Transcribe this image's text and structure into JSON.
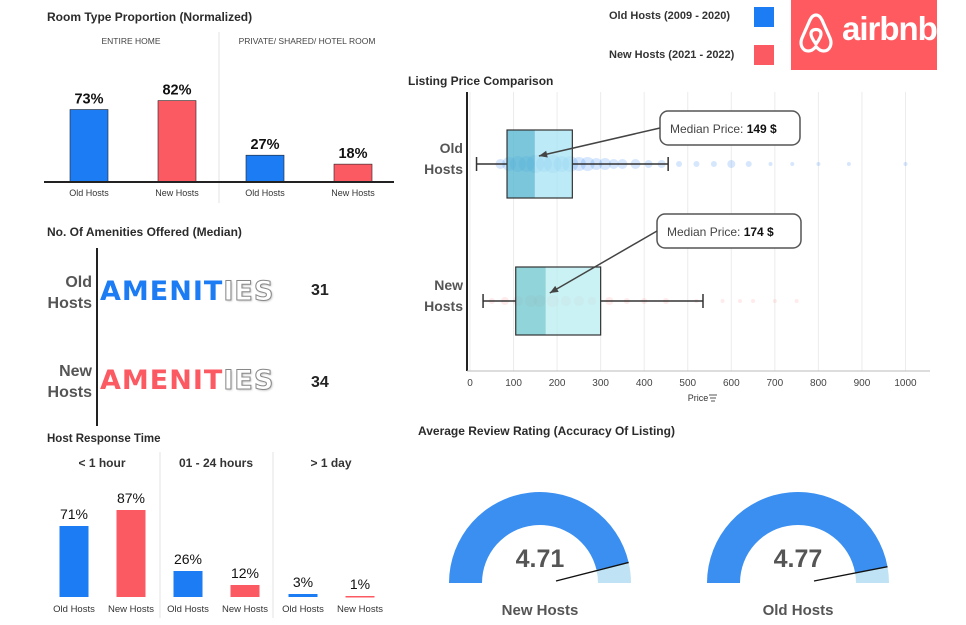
{
  "colors": {
    "old": "#1c7cf4",
    "new": "#fc5a63",
    "old_light": "#a6e3f3",
    "old_box_dark": "#4fb3cf",
    "new_light": "#b8ecef",
    "new_box_dark": "#6cc6cc",
    "gauge_old": "#3a8ff0",
    "gauge_light": "#bfe3f5",
    "axis": "#222222",
    "grid": "#ececec"
  },
  "legend": {
    "items": [
      {
        "label": "Old Hosts (2009 - 2020)",
        "color": "#1c7cf4"
      },
      {
        "label": "New Hosts (2021 - 2022)",
        "color": "#fc5a63"
      }
    ]
  },
  "logo": {
    "text": "airbnb",
    "icon": "airbnb-belo-icon"
  },
  "room_type": {
    "title": "Room Type Proportion (Normalized)",
    "chart_data": {
      "type": "bar",
      "groups": [
        "ENTIRE HOME",
        "PRIVATE/ SHARED/ HOTEL ROOM"
      ],
      "categories": [
        "Old Hosts",
        "New Hosts"
      ],
      "series": [
        {
          "group": "ENTIRE HOME",
          "values": [
            73,
            82
          ],
          "labels": [
            "73%",
            "82%"
          ]
        },
        {
          "group": "PRIVATE/ SHARED/ HOTEL ROOM",
          "values": [
            27,
            18
          ],
          "labels": [
            "27%",
            "18%"
          ]
        }
      ],
      "ylim": [
        0,
        100
      ]
    }
  },
  "amenities": {
    "title": "No. Of Amenities Offered (Median)",
    "chart_data": {
      "type": "bar",
      "categories": [
        "Old Hosts",
        "New Hosts"
      ],
      "values": [
        31,
        34
      ],
      "word": "AMENITIES"
    },
    "rows": [
      {
        "label_line1": "Old",
        "label_line2": "Hosts",
        "value": "31"
      },
      {
        "label_line1": "New",
        "label_line2": "Hosts",
        "value": "34"
      }
    ]
  },
  "response_time": {
    "title": "Host Response Time",
    "chart_data": {
      "type": "bar",
      "groups": [
        "< 1 hour",
        "01 - 24 hours",
        "> 1 day"
      ],
      "categories": [
        "Old Hosts",
        "New Hosts"
      ],
      "series": [
        {
          "group": "< 1 hour",
          "values": [
            71,
            87
          ],
          "labels": [
            "71%",
            "87%"
          ]
        },
        {
          "group": "01 - 24 hours",
          "values": [
            26,
            12
          ],
          "labels": [
            "26%",
            "12%"
          ]
        },
        {
          "group": "> 1 day",
          "values": [
            3,
            1
          ],
          "labels": [
            "3%",
            "1%"
          ]
        }
      ],
      "ylim": [
        0,
        100
      ]
    }
  },
  "price": {
    "title": "Listing Price Comparison",
    "xlabel": "Price",
    "sort_icon": "sort-icon",
    "chart_data": {
      "type": "box",
      "xlim": [
        0,
        1050
      ],
      "xticks": [
        0,
        100,
        200,
        300,
        400,
        500,
        600,
        700,
        800,
        900,
        1000
      ],
      "series": [
        {
          "name_line1": "Old",
          "name_line2": "Hosts",
          "whisker_low": 15,
          "q1": 85,
          "median": 149,
          "q3": 235,
          "whisker_high": 455,
          "callout_prefix": "Median Price: ",
          "callout_value": "149 $"
        },
        {
          "name_line1": "New",
          "name_line2": "Hosts",
          "whisker_low": 30,
          "q1": 105,
          "median": 174,
          "q3": 300,
          "whisker_high": 535,
          "callout_prefix": "Median Price: ",
          "callout_value": "174 $"
        }
      ]
    }
  },
  "rating": {
    "title": "Average Review Rating (Accuracy Of Listing)",
    "chart_data": {
      "type": "gauge",
      "max": 5,
      "items": [
        {
          "label": "New Hosts",
          "value": 4.71,
          "value_text": "4.71"
        },
        {
          "label": "Old Hosts",
          "value": 4.77,
          "value_text": "4.77"
        }
      ]
    }
  }
}
